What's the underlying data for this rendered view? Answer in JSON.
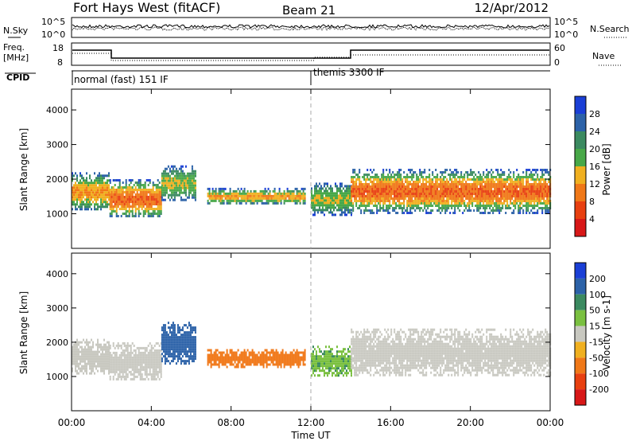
{
  "header": {
    "station": "Fort Hays West (fitACF)",
    "beam": "Beam 21",
    "date": "12/Apr/2012"
  },
  "noise_panel": {
    "left_label": "N.Sky",
    "right_label": "N.Search",
    "left_ticks": [
      "10^5",
      "10^0"
    ],
    "right_ticks": [
      "10^5",
      "10^0"
    ]
  },
  "freq_panel": {
    "left_label_1": "Freq.",
    "left_label_2": "[MHz]",
    "right_label": "Nave",
    "left_ticks": [
      "18",
      "8"
    ],
    "right_ticks": [
      "60",
      "0"
    ]
  },
  "cpid_panel": {
    "label": "CPID",
    "modes": [
      {
        "name": "normal (fast) 151 IF",
        "start_hour": 0
      },
      {
        "name": "themis 3300 IF",
        "start_hour": 12
      }
    ]
  },
  "time_axis": {
    "xlabel": "Time UT",
    "ticks": [
      "00:00",
      "04:00",
      "08:00",
      "12:00",
      "16:00",
      "20:00",
      "00:00"
    ]
  },
  "colors": {
    "power": [
      "#1a3fd6",
      "#2c62a8",
      "#3b8a60",
      "#48a848",
      "#f0b020",
      "#f07818",
      "#e84010",
      "#d81818"
    ],
    "velocity": [
      "#1a3fd6",
      "#2c62a8",
      "#3b8a60",
      "#7ac040",
      "#c8c8c0",
      "#f0b020",
      "#f07818",
      "#e84010",
      "#d81818"
    ]
  },
  "chart_data": [
    {
      "type": "heatmap",
      "name": "power",
      "ylabel": "Slant Range [km]",
      "yticks": [
        "4000",
        "3000",
        "2000",
        "1000"
      ],
      "ylim": [
        0,
        4600
      ],
      "xlim_hours": [
        0,
        24
      ],
      "colorbar_label": "Power [dB]",
      "colorbar_ticks": [
        "28",
        "24",
        "20",
        "16",
        "12",
        "8",
        "4"
      ],
      "colorbar_range": [
        0,
        32
      ],
      "echo_regions": [
        {
          "t0": 0.0,
          "t1": 1.9,
          "r_low": 1100,
          "r_high": 2200,
          "peak_db": 20
        },
        {
          "t0": 1.9,
          "t1": 4.5,
          "r_low": 900,
          "r_high": 2000,
          "peak_db": 22
        },
        {
          "t0": 4.5,
          "t1": 6.2,
          "r_low": 1400,
          "r_high": 2400,
          "peak_db": 14
        },
        {
          "t0": 6.8,
          "t1": 11.7,
          "r_low": 1300,
          "r_high": 1750,
          "peak_db": 18
        },
        {
          "t0": 12.0,
          "t1": 14.0,
          "r_low": 1000,
          "r_high": 1900,
          "peak_db": 14
        },
        {
          "t0": 14.0,
          "t1": 24.0,
          "r_low": 1050,
          "r_high": 2300,
          "peak_db": 22
        }
      ]
    },
    {
      "type": "heatmap",
      "name": "velocity",
      "ylabel": "Slant Range [km]",
      "yticks": [
        "4000",
        "3000",
        "2000",
        "1000"
      ],
      "ylim": [
        0,
        4600
      ],
      "xlim_hours": [
        0,
        24
      ],
      "colorbar_label": "Velocity [m s-1]",
      "colorbar_ticks": [
        "200",
        "100",
        "50",
        "15",
        "-15",
        "-50",
        "-100",
        "-200"
      ],
      "colorbar_range": [
        -250,
        250
      ],
      "echo_regions": [
        {
          "t0": 0.0,
          "t1": 1.9,
          "r_low": 1100,
          "r_high": 2100,
          "vel": 0
        },
        {
          "t0": 1.9,
          "t1": 4.5,
          "r_low": 900,
          "r_high": 2000,
          "vel": 0
        },
        {
          "t0": 4.5,
          "t1": 6.2,
          "r_low": 1400,
          "r_high": 2600,
          "vel": 150
        },
        {
          "t0": 6.8,
          "t1": 11.7,
          "r_low": 1300,
          "r_high": 1800,
          "vel": -80
        },
        {
          "t0": 12.0,
          "t1": 14.0,
          "r_low": 1000,
          "r_high": 1900,
          "vel": 40
        },
        {
          "t0": 14.0,
          "t1": 24.0,
          "r_low": 1050,
          "r_high": 2400,
          "vel": 0
        }
      ]
    }
  ]
}
